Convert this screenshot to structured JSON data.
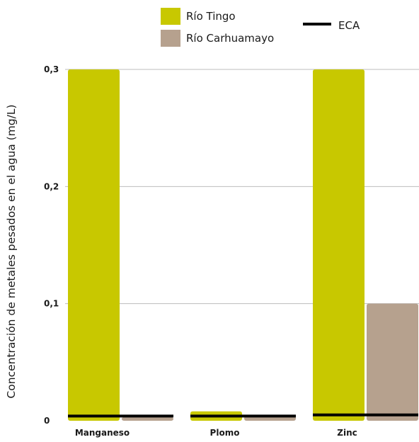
{
  "chart_data": {
    "type": "bar",
    "categories": [
      "Manganeso",
      "Plomo",
      "Zinc"
    ],
    "series": [
      {
        "name": "Río Tingo",
        "values": [
          0.3,
          0.008,
          0.3
        ],
        "color": "#c8c800"
      },
      {
        "name": "Río Carhuamayo",
        "values": [
          0.003,
          0.004,
          0.1
        ],
        "color": "#b6a18e"
      }
    ],
    "reference_line": {
      "name": "ECA",
      "values": [
        0.004,
        0.004,
        0.005
      ],
      "color": "#000000"
    },
    "ylabel": "Concentración de metales pesados en el agua  (mg/L)",
    "xlabel": "",
    "ylim": [
      0,
      0.3
    ],
    "yticks": [
      "0",
      "0,1",
      "0,2",
      "0,3"
    ],
    "ytick_values": [
      0,
      0.1,
      0.2,
      0.3
    ],
    "grid": true,
    "legend_position": "top-center"
  }
}
